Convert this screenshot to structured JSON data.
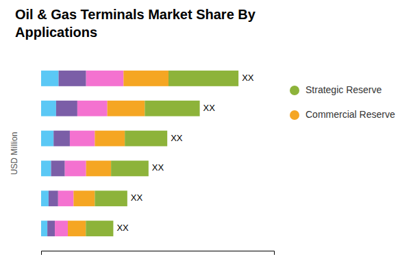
{
  "chart_data": {
    "type": "bar",
    "orientation": "horizontal",
    "stacked": true,
    "title": "Oil & Gas Terminals Market Share By\nApplications",
    "ylabel": "USD Million",
    "categories": [
      null,
      null,
      null,
      null,
      null,
      null
    ],
    "series": [
      {
        "color": "#5BC8F5",
        "values": [
          0.7,
          0.6,
          0.5,
          0.4,
          0.3,
          0.25
        ]
      },
      {
        "color": "#7B5EA7",
        "values": [
          1.1,
          0.85,
          0.65,
          0.55,
          0.38,
          0.3
        ]
      },
      {
        "color": "#F472D0",
        "values": [
          1.5,
          1.2,
          1.0,
          0.85,
          0.62,
          0.52
        ]
      },
      {
        "name": "Commercial Reserve",
        "color": "#F5A623",
        "values": [
          1.8,
          1.5,
          1.2,
          1.0,
          0.85,
          0.72
        ]
      },
      {
        "name": "Strategic Reserve",
        "color": "#8DB33A",
        "values": [
          2.8,
          2.2,
          1.7,
          1.5,
          1.3,
          1.1
        ]
      }
    ],
    "annotations": [
      "XX",
      "XX",
      "XX",
      "XX",
      "XX",
      "XX"
    ],
    "xlim": [
      0,
      9.322
    ],
    "xticks": [],
    "tick_labels": false,
    "grid": false
  }
}
